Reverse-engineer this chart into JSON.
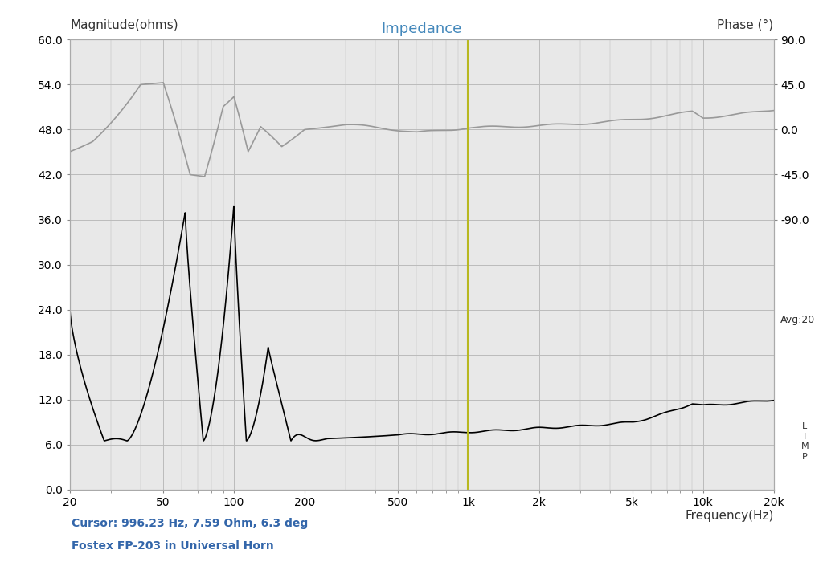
{
  "title": "Impedance",
  "left_ylabel": "Magnitude(ohms)",
  "right_ylabel": "Phase (°)",
  "xlabel": "Frequency(Hz)",
  "cursor_text": "Cursor: 996.23 Hz, 7.59 Ohm, 6.3 deg",
  "subtitle": "Fostex FP-203 in Universal Horn",
  "avg_text": "Avg:20",
  "cursor_freq": 996.23,
  "xmin": 20,
  "xmax": 20000,
  "ylim_left": [
    0.0,
    60.0
  ],
  "ylim_right": [
    -90.0,
    90.0
  ],
  "yticks_left": [
    0.0,
    6.0,
    12.0,
    18.0,
    24.0,
    30.0,
    36.0,
    42.0,
    48.0,
    54.0,
    60.0
  ],
  "yticks_right": [
    -90.0,
    -45.0,
    0.0,
    45.0,
    90.0
  ],
  "xtick_labels": [
    "20",
    "50",
    "100",
    "200",
    "500",
    "1k",
    "2k",
    "5k",
    "10k",
    "20k"
  ],
  "xtick_values": [
    20,
    50,
    100,
    200,
    500,
    1000,
    2000,
    5000,
    10000,
    20000
  ],
  "magnitude_color": "#000000",
  "phase_color": "#999999",
  "cursor_color": "#b8b820",
  "background_color": "#e8e8e8",
  "grid_color": "#bbbbbb",
  "title_color": "#4488bb",
  "annotation_color": "#3366aa",
  "fig_background": "#ffffff"
}
